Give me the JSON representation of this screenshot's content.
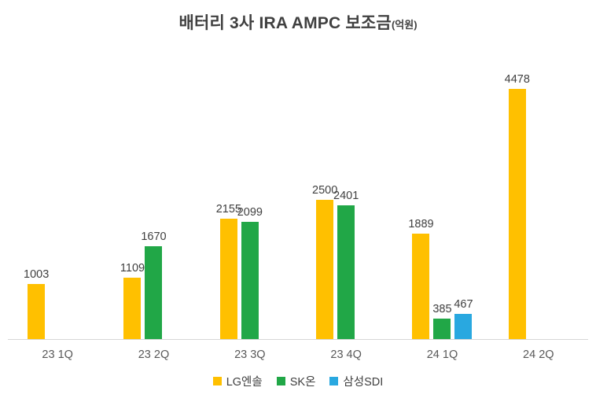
{
  "title": {
    "main": "배터리 3사 IRA AMPC 보조금",
    "unit": "(억원)"
  },
  "chart_data": {
    "type": "bar",
    "title": "배터리 3사 IRA AMPC 보조금(억원)",
    "categories": [
      "23 1Q",
      "23 2Q",
      "23 3Q",
      "23 4Q",
      "24 1Q",
      "24 2Q"
    ],
    "series": [
      {
        "name": "LG엔솔",
        "color": "#FFC000",
        "values": [
          1003,
          1109,
          2155,
          2500,
          1889,
          4478
        ]
      },
      {
        "name": "SK온",
        "color": "#21A747",
        "values": [
          null,
          1670,
          2099,
          2401,
          385,
          null
        ]
      },
      {
        "name": "삼성SDI",
        "color": "#29A8E0",
        "values": [
          null,
          null,
          null,
          null,
          467,
          null
        ]
      }
    ],
    "ylim": [
      0,
      4800
    ],
    "grid": false,
    "data_labels": true,
    "legend_position": "bottom",
    "axis_line_color": "#d6d6d6",
    "label_color": "#404040",
    "category_label_color": "#595959"
  }
}
